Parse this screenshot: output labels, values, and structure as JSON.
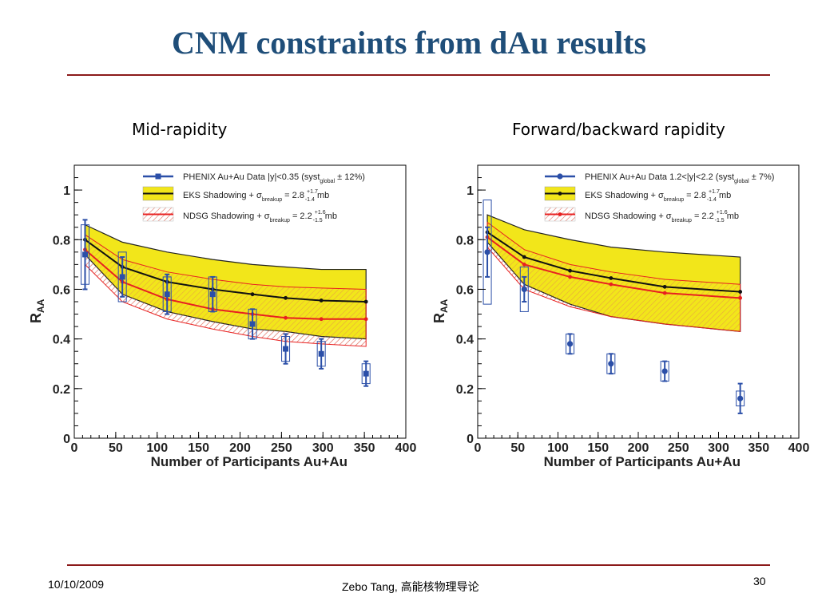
{
  "slide": {
    "title": "CNM constraints from dAu results",
    "left_subtitle": "Mid-rapidity",
    "right_subtitle": "Forward/backward rapidity",
    "footer_date": "10/10/2009",
    "footer_author": "Zebo Tang, ",
    "footer_course": "高能核物理导论",
    "page_number": "30",
    "colors": {
      "title": "#1f4e79",
      "rule": "#8b1a1a",
      "data": "#2b4fa8",
      "eks_band": "#f2e61a",
      "eks_line": "#111111",
      "ndsg_line": "#e82020",
      "ndsg_hatch": "#e07060"
    }
  },
  "chart_data": [
    {
      "type": "line",
      "xlabel": "Number of Participants Au+Au",
      "ylabel": "R",
      "ylabel_sub": "AA",
      "xlim": [
        0,
        400
      ],
      "ylim": [
        0,
        1.1
      ],
      "xticks": [
        0,
        50,
        100,
        150,
        200,
        250,
        300,
        350,
        400
      ],
      "yticks": [
        0,
        0.2,
        0.4,
        0.6,
        0.8,
        1
      ],
      "ytick_labels": [
        "0",
        "0.2",
        "0.4",
        "0.6",
        "0.8",
        "1"
      ],
      "legend": {
        "data": {
          "text": "PHENIX Au+Au Data |y|<0.35 (syst",
          "sub": "global",
          "tail": " ± 12%)"
        },
        "eks": {
          "text": "EKS Shadowing + σ",
          "sub": "breakup",
          "tail": " = 2.8 ",
          "sup": "+1.7",
          "subscr": "-1.4",
          "unit": " mb"
        },
        "ndsg": {
          "text": "NDSG Shadowing + σ",
          "sub": "breakup",
          "tail": " = 2.2 ",
          "sup": "+1.6",
          "subscr": "-1.5",
          "unit": " mb"
        }
      },
      "data_points": {
        "x": [
          13,
          58,
          112,
          167,
          215,
          255,
          298,
          352
        ],
        "y": [
          0.74,
          0.65,
          0.58,
          0.58,
          0.46,
          0.36,
          0.34,
          0.26
        ],
        "stat_err": [
          0.14,
          0.08,
          0.08,
          0.07,
          0.06,
          0.06,
          0.06,
          0.05
        ],
        "syst_err": [
          0.12,
          0.1,
          0.07,
          0.07,
          0.06,
          0.05,
          0.05,
          0.04
        ]
      },
      "eks_band": {
        "x": [
          13,
          58,
          112,
          167,
          215,
          255,
          298,
          352
        ],
        "upper": [
          0.86,
          0.79,
          0.75,
          0.72,
          0.7,
          0.69,
          0.68,
          0.68
        ],
        "lower": [
          0.74,
          0.58,
          0.51,
          0.47,
          0.44,
          0.43,
          0.41,
          0.4
        ],
        "central": [
          0.8,
          0.69,
          0.63,
          0.6,
          0.58,
          0.565,
          0.555,
          0.55
        ]
      },
      "ndsg_band": {
        "x": [
          13,
          58,
          112,
          167,
          215,
          255,
          298,
          352
        ],
        "upper": [
          0.82,
          0.72,
          0.67,
          0.64,
          0.62,
          0.61,
          0.605,
          0.6
        ],
        "lower": [
          0.7,
          0.55,
          0.48,
          0.44,
          0.41,
          0.39,
          0.38,
          0.37
        ],
        "central": [
          0.76,
          0.63,
          0.56,
          0.52,
          0.5,
          0.485,
          0.48,
          0.48
        ]
      }
    },
    {
      "type": "line",
      "xlabel": "Number of Participants Au+Au",
      "ylabel": "R",
      "ylabel_sub": "AA",
      "xlim": [
        0,
        400
      ],
      "ylim": [
        0,
        1.1
      ],
      "xticks": [
        0,
        50,
        100,
        150,
        200,
        250,
        300,
        350,
        400
      ],
      "yticks": [
        0,
        0.2,
        0.4,
        0.6,
        0.8,
        1
      ],
      "ytick_labels": [
        "0",
        "0.2",
        "0.4",
        "0.6",
        "0.8",
        "1"
      ],
      "legend": {
        "data": {
          "text": "PHENIX Au+Au Data 1.2<|y|<2.2 (syst",
          "sub": "global",
          "tail": " ± 7%)"
        },
        "eks": {
          "text": "EKS Shadowing + σ",
          "sub": "breakup",
          "tail": " = 2.8 ",
          "sup": "+1.7",
          "subscr": "-1.4",
          "unit": " mb"
        },
        "ndsg": {
          "text": "NDSG Shadowing + σ",
          "sub": "breakup",
          "tail": " = 2.2 ",
          "sup": "+1.6",
          "subscr": "-1.5",
          "unit": " mb"
        }
      },
      "data_points": {
        "x": [
          12,
          58,
          115,
          166,
          233,
          327
        ],
        "y": [
          0.75,
          0.6,
          0.38,
          0.3,
          0.27,
          0.16
        ],
        "stat_err": [
          0.1,
          0.05,
          0.04,
          0.04,
          0.04,
          0.06
        ],
        "syst_err": [
          0.21,
          0.09,
          0.04,
          0.04,
          0.04,
          0.03
        ]
      },
      "eks_band": {
        "x": [
          12,
          58,
          115,
          166,
          233,
          327
        ],
        "upper": [
          0.9,
          0.84,
          0.8,
          0.77,
          0.75,
          0.73
        ],
        "lower": [
          0.79,
          0.62,
          0.54,
          0.49,
          0.46,
          0.43
        ],
        "central": [
          0.83,
          0.73,
          0.675,
          0.645,
          0.61,
          0.59
        ]
      },
      "ndsg_band": {
        "x": [
          12,
          58,
          115,
          166,
          233,
          327
        ],
        "upper": [
          0.87,
          0.76,
          0.7,
          0.67,
          0.64,
          0.62
        ],
        "lower": [
          0.77,
          0.6,
          0.53,
          0.49,
          0.46,
          0.43
        ],
        "central": [
          0.81,
          0.7,
          0.65,
          0.62,
          0.585,
          0.565
        ]
      }
    }
  ]
}
